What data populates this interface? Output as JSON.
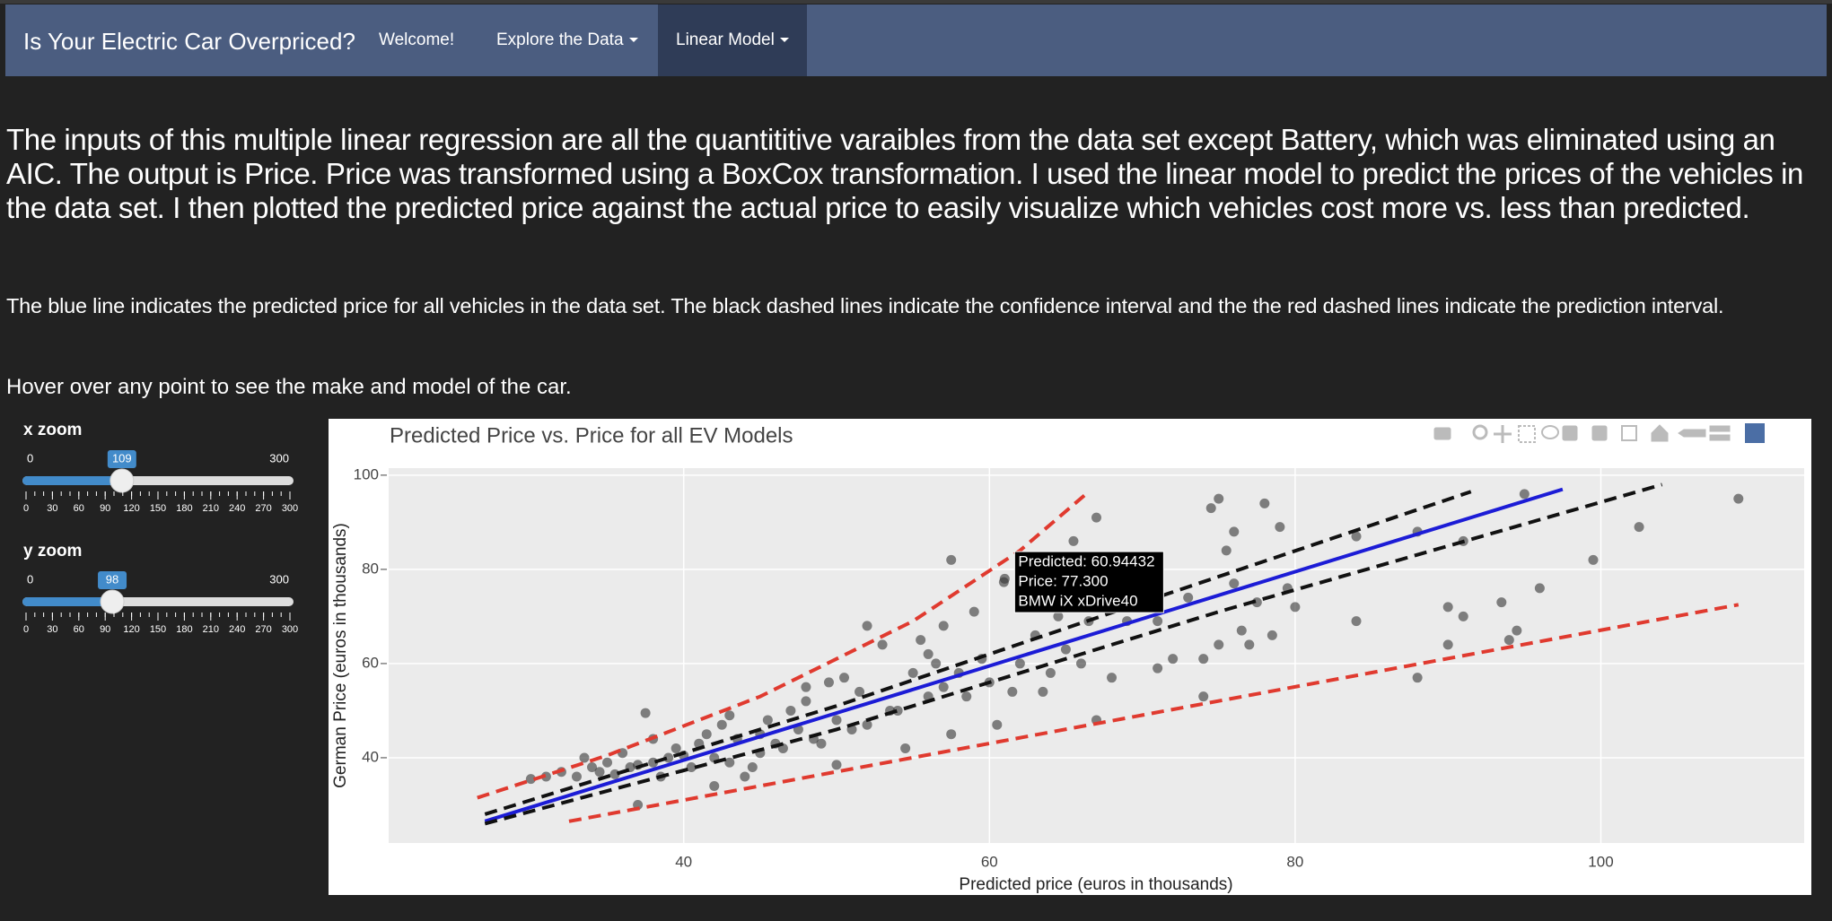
{
  "navbar": {
    "brand": "Is Your Electric Car Overpriced?",
    "items": [
      "Welcome!",
      "Explore the Data",
      "Linear Model"
    ]
  },
  "intro": {
    "paragraph": "The inputs of this multiple linear regression are all the quantititive varaibles from the data set except Battery, which was eliminated using an AIC. The output is Price. Price was transformed using a BoxCox transformation. I used the linear model to predict the prices of the vehicles in the data set. I then plotted the predicted price against the actual price to easily visualize which vehicles cost more vs. less than predicted.",
    "note": "The blue line indicates the predicted price for all vehicles in the data set. The black dashed lines indicate the confidence interval and the the red dashed lines indicate the prediction interval.",
    "hover_hint": "Hover over any point to see the make and model of the car."
  },
  "sliders": [
    {
      "label": "x zoom",
      "min": 0,
      "max": 300,
      "value": 109,
      "ticks": [
        0,
        30,
        60,
        90,
        120,
        150,
        180,
        210,
        240,
        270,
        300
      ]
    },
    {
      "label": "y zoom",
      "min": 0,
      "max": 300,
      "value": 98,
      "ticks": [
        0,
        30,
        60,
        90,
        120,
        150,
        180,
        210,
        240,
        270,
        300
      ]
    }
  ],
  "chart_data": {
    "type": "scatter",
    "title": "Predicted Price vs. Price for all EV Models",
    "x_label": "Predicted price (euros in thousands)",
    "y_label": "German Price (euros in thousands)",
    "xlim": [
      20.7,
      113.3
    ],
    "ylim": [
      21.9,
      101.5
    ],
    "xticks": [
      40,
      60,
      80,
      100
    ],
    "yticks": [
      40,
      60,
      80,
      100
    ],
    "grid": true,
    "color": "#333333",
    "x": [
      30,
      31,
      32,
      33,
      33.5,
      34,
      34.5,
      35,
      35.5,
      36,
      36.5,
      37,
      37,
      37.5,
      38,
      38,
      38.5,
      39,
      39.5,
      40,
      40.5,
      41,
      41.5,
      42,
      42,
      42.5,
      43,
      43,
      43.5,
      44,
      44.5,
      45,
      45,
      45.5,
      46,
      46.5,
      47,
      47.5,
      48,
      48,
      48.5,
      49,
      49.5,
      50,
      50,
      50.5,
      51,
      51.5,
      52,
      52,
      53,
      53.5,
      54,
      54.5,
      55,
      55.5,
      56,
      56,
      56.5,
      57,
      57,
      57.5,
      57.5,
      58,
      58.5,
      59,
      59.5,
      60,
      60.5,
      61,
      61.5,
      62,
      62,
      63,
      63.5,
      64,
      64.5,
      65,
      65.5,
      66,
      66.5,
      67,
      67,
      68,
      69,
      70,
      71,
      71,
      72,
      73,
      74,
      74,
      74.5,
      75,
      75,
      75.5,
      76,
      76,
      76.5,
      77,
      77.5,
      78,
      78.5,
      79,
      79.5,
      80,
      84,
      84,
      88,
      88,
      90,
      90,
      91,
      91,
      93.5,
      94,
      94.5,
      95,
      96,
      99.5,
      102.5,
      109,
      60.94432
    ],
    "values": [
      35.5,
      36,
      37,
      36,
      40,
      38,
      37,
      39,
      36.5,
      41,
      38,
      38.5,
      30,
      49.5,
      39,
      44,
      36,
      40,
      42,
      40.5,
      38,
      43,
      45,
      40,
      34,
      47,
      39,
      49,
      44,
      36,
      38,
      45,
      41,
      48,
      43,
      42,
      50,
      46,
      52,
      55,
      44,
      43,
      56,
      38.5,
      48,
      57,
      46,
      54,
      47,
      68,
      64,
      50,
      50,
      42,
      58,
      65,
      53,
      62,
      60,
      55,
      68,
      82,
      45,
      58,
      53,
      71,
      61,
      56,
      47,
      78,
      54,
      60,
      72,
      66,
      54,
      58,
      70,
      63,
      86,
      60,
      69,
      91,
      48,
      57,
      69,
      73,
      59,
      69,
      61,
      74,
      61,
      53,
      93,
      95,
      64,
      84,
      88,
      77,
      67,
      64,
      73,
      94,
      66,
      89,
      76,
      72,
      87,
      69,
      88,
      57,
      72,
      64,
      86,
      70,
      73,
      65,
      67,
      96,
      76,
      82,
      89,
      95,
      77.3
    ],
    "lines": [
      {
        "color": "#e03a2f",
        "dash": true,
        "x": [
          26.5,
          35,
          45,
          55,
          62,
          66.5
        ],
        "values": [
          31.5,
          40.5,
          53,
          69,
          84,
          96.5
        ]
      },
      {
        "color": "#e03a2f",
        "dash": true,
        "x": [
          32.5,
          109
        ],
        "values": [
          26.5,
          72.5
        ]
      },
      {
        "color": "#1c1cd6",
        "dash": false,
        "x": [
          27,
          97.5
        ],
        "values": [
          26.5,
          97
        ]
      },
      {
        "color": "#111111",
        "dash": true,
        "x": [
          27,
          50,
          70,
          91.5
        ],
        "values": [
          28,
          51,
          73,
          96.5
        ]
      },
      {
        "color": "#111111",
        "dash": true,
        "x": [
          27,
          50,
          75,
          104
        ],
        "values": [
          26,
          46,
          71,
          98
        ]
      }
    ],
    "tooltip": [
      "Predicted:  60.94432",
      "Price:  77.300",
      "BMW iX xDrive40"
    ]
  }
}
